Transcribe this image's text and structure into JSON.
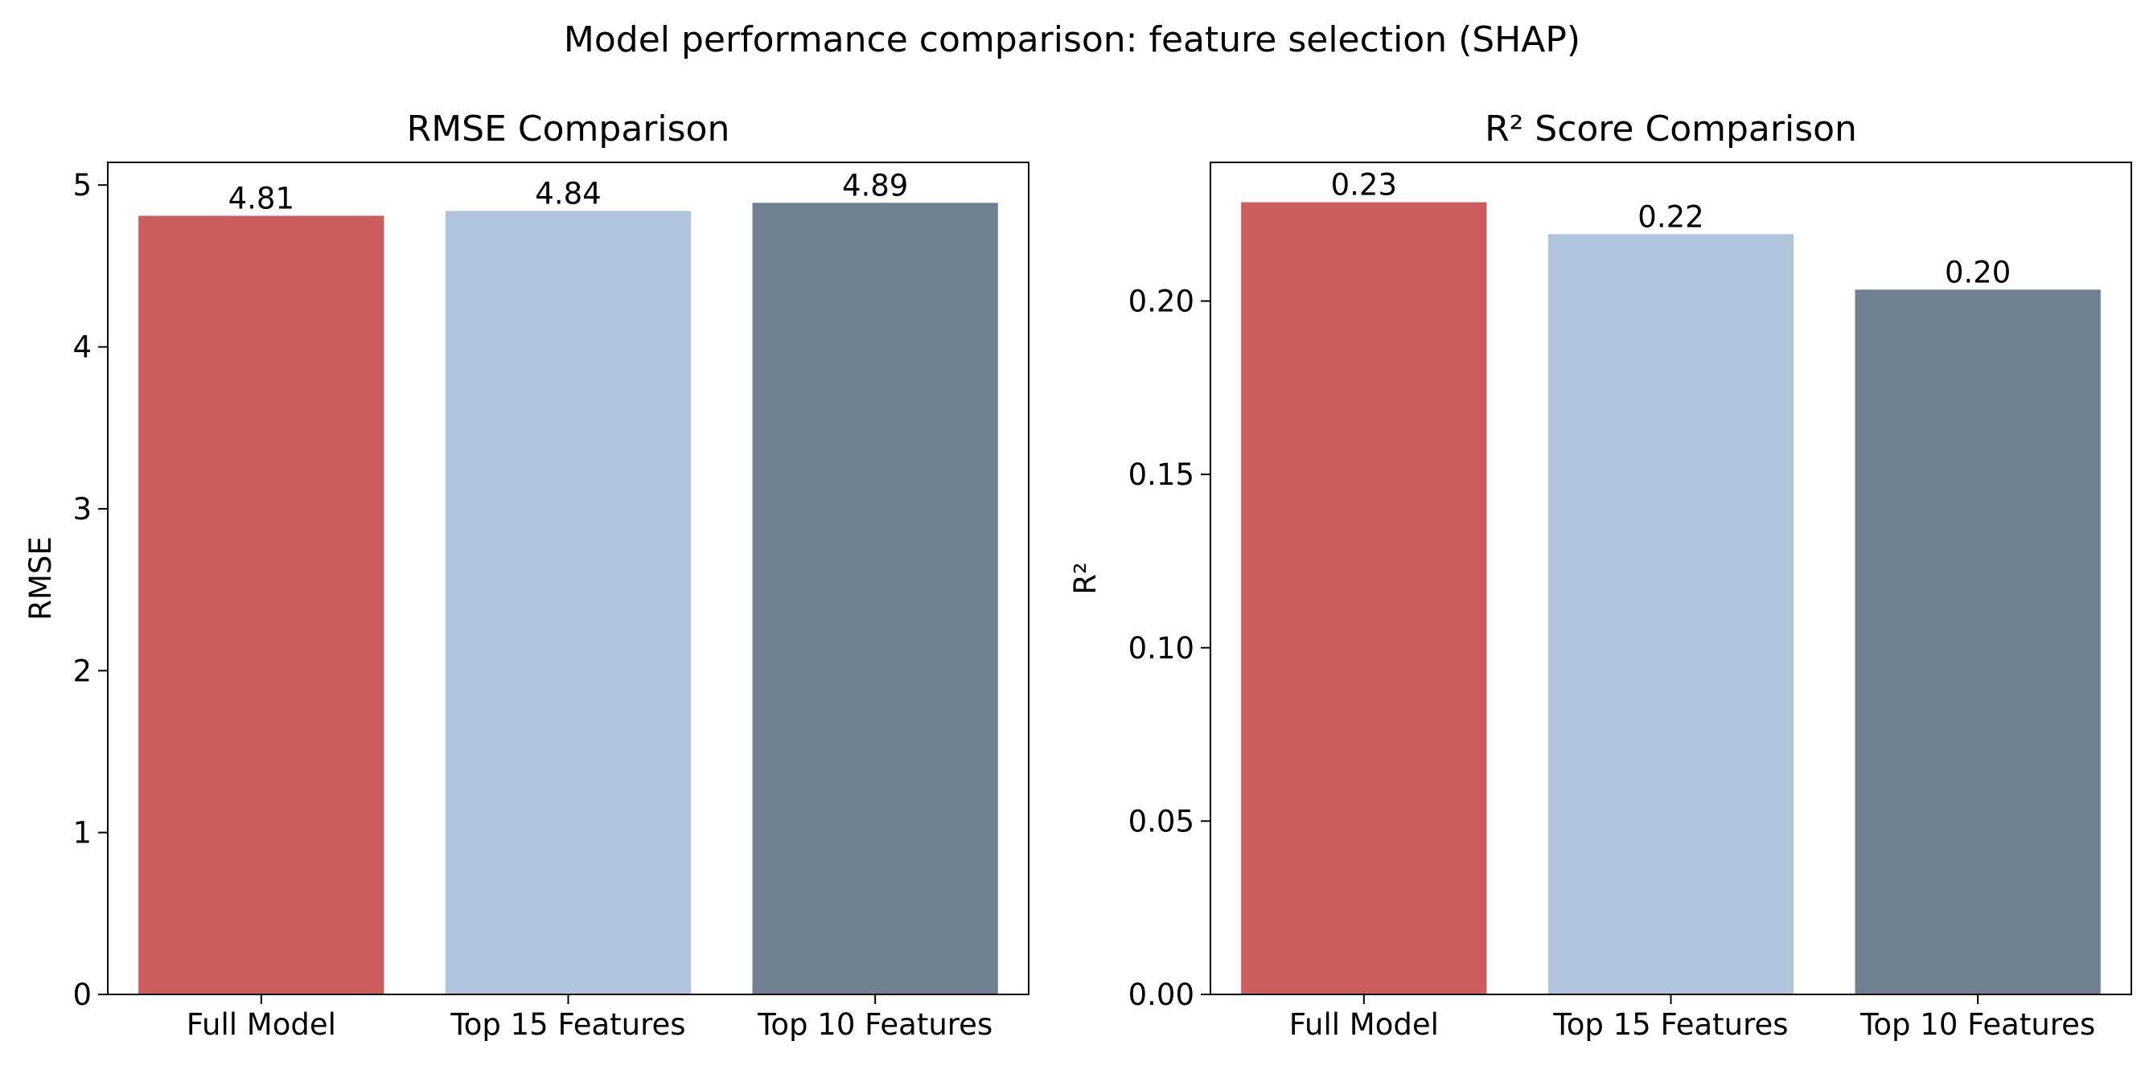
{
  "figure": {
    "suptitle": "Model performance comparison: feature selection (SHAP)"
  },
  "chart_data": [
    {
      "type": "bar",
      "title": "RMSE Comparison",
      "xlabel": "",
      "ylabel": "RMSE",
      "categories": [
        "Full Model",
        "Top 15 Features",
        "Top 10 Features"
      ],
      "values": [
        4.81,
        4.84,
        4.89
      ],
      "value_labels": [
        "4.81",
        "4.84",
        "4.89"
      ],
      "colors": [
        "#cd5c5c",
        "#b0c4de",
        "#708090"
      ],
      "ylim": [
        0,
        5.14
      ],
      "yticks": [
        0,
        1,
        2,
        3,
        4,
        5
      ],
      "ytick_labels": [
        "0",
        "1",
        "2",
        "3",
        "4",
        "5"
      ],
      "grid": false
    },
    {
      "type": "bar",
      "title": "R² Score Comparison",
      "xlabel": "",
      "ylabel": "R²",
      "categories": [
        "Full Model",
        "Top 15 Features",
        "Top 10 Features"
      ],
      "values": [
        0.2285,
        0.2193,
        0.2033
      ],
      "value_labels": [
        "0.23",
        "0.22",
        "0.20"
      ],
      "colors": [
        "#cd5c5c",
        "#b0c4de",
        "#708090"
      ],
      "ylim": [
        0,
        0.24
      ],
      "yticks": [
        0,
        0.05,
        0.1,
        0.15,
        0.2
      ],
      "ytick_labels": [
        "0.00",
        "0.05",
        "0.10",
        "0.15",
        "0.20"
      ],
      "grid": false
    }
  ]
}
